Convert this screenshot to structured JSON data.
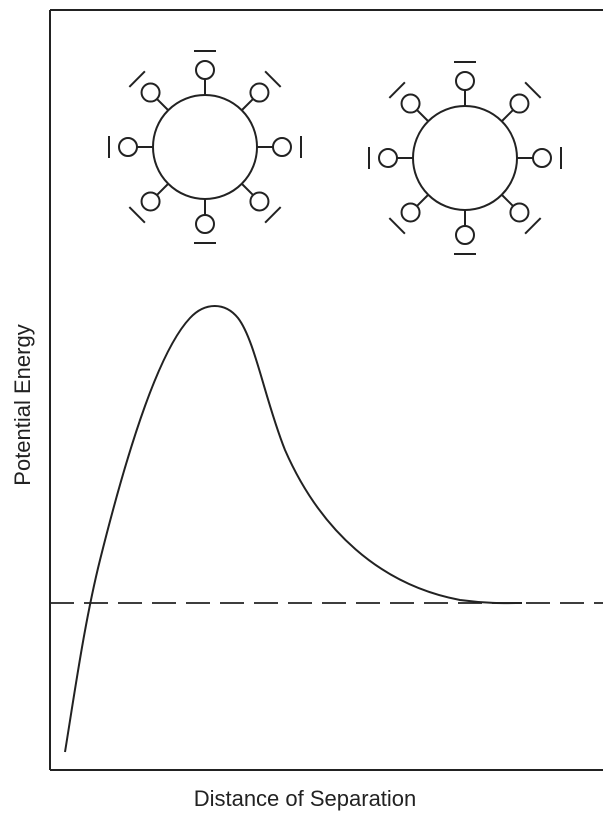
{
  "axes": {
    "x_label": "Distance of Separation",
    "y_label": "Potential Energy"
  }
}
